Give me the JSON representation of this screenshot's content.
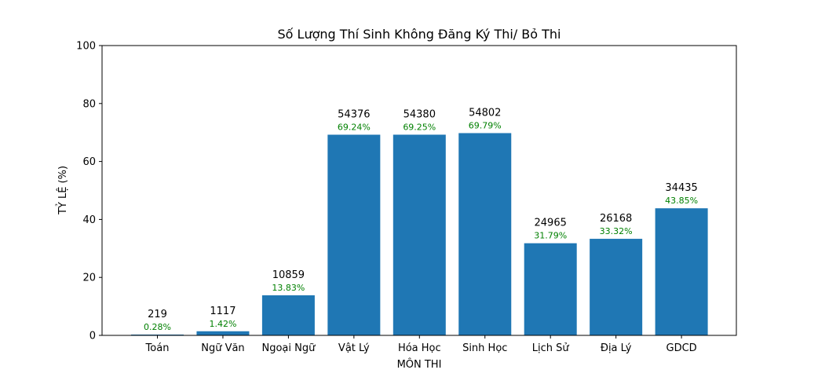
{
  "colors": {
    "bar": "#1f77b4",
    "percent_label": "#008000",
    "axes": "#000000"
  },
  "chart_data": {
    "type": "bar",
    "title": "Số Lượng Thí Sinh Không Đăng Ký Thi/ Bỏ Thi",
    "xlabel": "MÔN THI",
    "ylabel": "TỶ LỆ (%)",
    "ylim": [
      0,
      100
    ],
    "yticks": [
      0,
      20,
      40,
      60,
      80,
      100
    ],
    "grid": false,
    "categories": [
      "Toán",
      "Ngữ Văn",
      "Ngoại Ngữ",
      "Vật Lý",
      "Hóa Học",
      "Sinh Học",
      "Lịch Sử",
      "Địa Lý",
      "GDCD"
    ],
    "values": [
      0.28,
      1.42,
      13.83,
      69.24,
      69.25,
      69.79,
      31.79,
      33.32,
      43.85
    ],
    "count_labels": [
      "219",
      "1117",
      "10859",
      "54376",
      "54380",
      "54802",
      "24965",
      "26168",
      "34435"
    ],
    "percent_labels": [
      "0.28%",
      "1.42%",
      "13.83%",
      "69.24%",
      "69.25%",
      "69.79%",
      "31.79%",
      "33.32%",
      "43.85%"
    ]
  }
}
